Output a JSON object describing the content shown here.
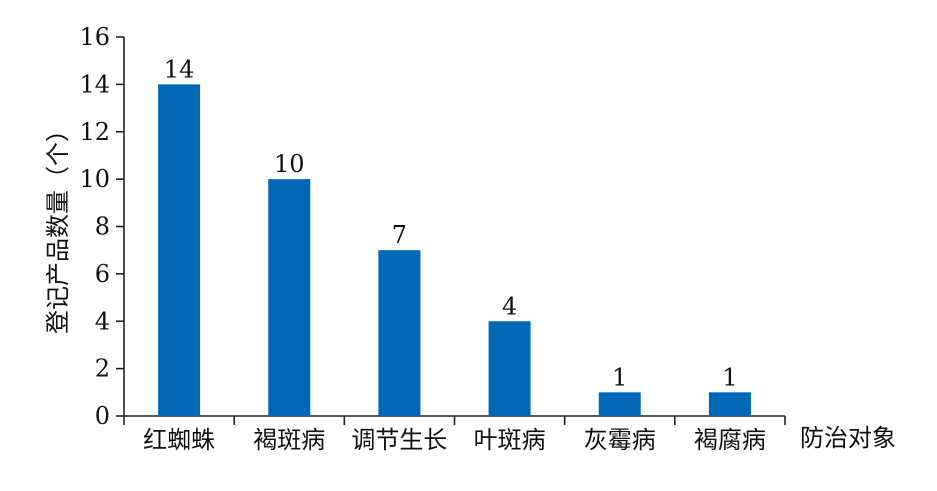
{
  "chart_data": {
    "type": "bar",
    "categories": [
      "红蜘蛛",
      "褐斑病",
      "调节生长",
      "叶斑病",
      "灰霉病",
      "褐腐病"
    ],
    "values": [
      14,
      10,
      7,
      4,
      1,
      1
    ],
    "data_labels": [
      "14",
      "10",
      "7",
      "4",
      "1",
      "1"
    ],
    "yticks": [
      "0",
      "2",
      "4",
      "6",
      "8",
      "10",
      "12",
      "14",
      "16"
    ],
    "ylim": [
      0,
      16
    ],
    "ylabel": "登记产品数量（个）",
    "xlabel": "防治对象",
    "bar_color": "#0068b7",
    "grid": false,
    "legend": "none"
  }
}
